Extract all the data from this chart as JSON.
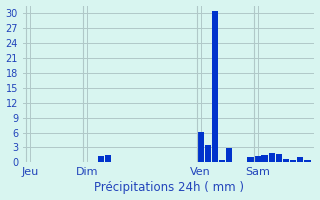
{
  "title": "Précipitations 24h ( mm )",
  "bar_color": "#0033cc",
  "bg_color": "#d8f5f0",
  "grid_color": "#b0c8c8",
  "text_color": "#2244bb",
  "ylim": [
    0,
    31.5
  ],
  "yticks": [
    0,
    3,
    6,
    9,
    12,
    15,
    18,
    21,
    24,
    27,
    30
  ],
  "day_labels": [
    "Jeu",
    "Dim",
    "Ven",
    "Sam"
  ],
  "day_positions": [
    0,
    8,
    24,
    32
  ],
  "num_bars": 40,
  "bar_values": [
    0,
    0,
    0,
    0,
    0,
    0,
    0,
    0,
    0,
    0,
    1.2,
    1.5,
    0,
    0,
    0,
    0,
    0,
    0,
    0,
    0,
    0,
    0,
    0,
    0,
    6.2,
    3.5,
    30.5,
    0.5,
    2.8,
    0,
    0,
    1.0,
    1.3,
    1.5,
    1.8,
    1.6,
    0.6,
    0.5,
    1.0,
    0.4
  ]
}
